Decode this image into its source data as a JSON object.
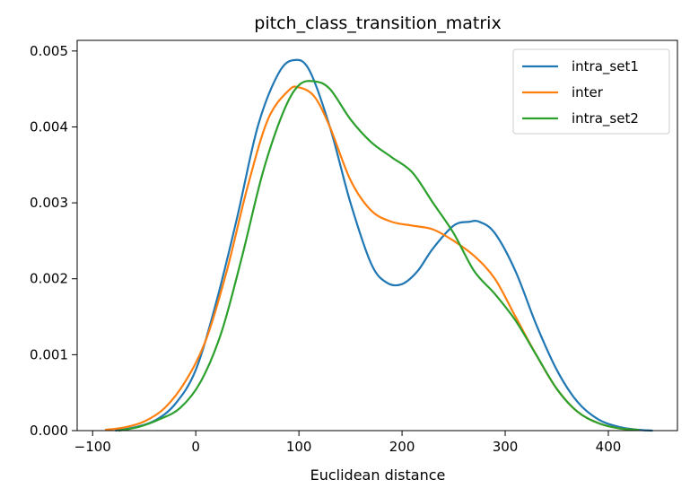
{
  "chart_data": {
    "type": "line",
    "title": "pitch_class_transition_matrix",
    "xlabel": "Euclidean distance",
    "ylabel": "",
    "xlim": [
      -115,
      467
    ],
    "ylim": [
      0,
      0.00514
    ],
    "xticks": [
      -100,
      0,
      100,
      200,
      300,
      400
    ],
    "xtick_labels": [
      "−100",
      "0",
      "100",
      "200",
      "300",
      "400"
    ],
    "yticks": [
      0,
      0.001,
      0.002,
      0.003,
      0.004,
      0.005
    ],
    "ytick_labels": [
      "0.000",
      "0.001",
      "0.002",
      "0.003",
      "0.004",
      "0.005"
    ],
    "grid": false,
    "legend_position": "top-right",
    "series": [
      {
        "name": "intra_set1",
        "color": "#1f77b4",
        "x": [
          -78,
          -60,
          -40,
          -20,
          0,
          20,
          40,
          60,
          80,
          95,
          110,
          130,
          150,
          170,
          185,
          200,
          215,
          230,
          250,
          265,
          275,
          290,
          310,
          330,
          350,
          370,
          390,
          410,
          430,
          443
        ],
        "y": [
          0.0,
          4e-05,
          0.00013,
          0.00035,
          0.0008,
          0.0017,
          0.0028,
          0.004,
          0.0047,
          0.00488,
          0.00475,
          0.004,
          0.003,
          0.0022,
          0.00195,
          0.00193,
          0.0021,
          0.0024,
          0.0027,
          0.00275,
          0.00275,
          0.0026,
          0.0021,
          0.0014,
          0.0008,
          0.00038,
          0.00015,
          5e-05,
          1e-05,
          0.0
        ]
      },
      {
        "name": "inter",
        "color": "#ff7f0e",
        "x": [
          -88,
          -70,
          -50,
          -30,
          -10,
          10,
          30,
          50,
          70,
          90,
          100,
          115,
          130,
          150,
          170,
          190,
          210,
          230,
          250,
          270,
          290,
          310,
          330,
          350,
          370,
          390,
          410,
          430
        ],
        "y": [
          1e-05,
          4e-05,
          0.00012,
          0.0003,
          0.00065,
          0.0012,
          0.0021,
          0.0032,
          0.0041,
          0.00448,
          0.00452,
          0.0044,
          0.004,
          0.0033,
          0.0029,
          0.00275,
          0.0027,
          0.00265,
          0.0025,
          0.0023,
          0.002,
          0.0015,
          0.001,
          0.00055,
          0.00025,
          0.0001,
          3e-05,
          1e-05
        ]
      },
      {
        "name": "intra_set2",
        "color": "#2ca02c",
        "x": [
          -75,
          -55,
          -35,
          -15,
          5,
          25,
          45,
          65,
          85,
          100,
          115,
          130,
          150,
          170,
          190,
          210,
          230,
          250,
          270,
          290,
          310,
          330,
          350,
          370,
          390,
          410,
          430
        ],
        "y": [
          0.0,
          5e-05,
          0.00015,
          0.0003,
          0.00065,
          0.0013,
          0.0023,
          0.0034,
          0.0042,
          0.00455,
          0.0046,
          0.0045,
          0.0041,
          0.0038,
          0.0036,
          0.0034,
          0.003,
          0.0026,
          0.0021,
          0.0018,
          0.00145,
          0.001,
          0.00055,
          0.00025,
          0.0001,
          3e-05,
          1e-05
        ]
      }
    ]
  }
}
